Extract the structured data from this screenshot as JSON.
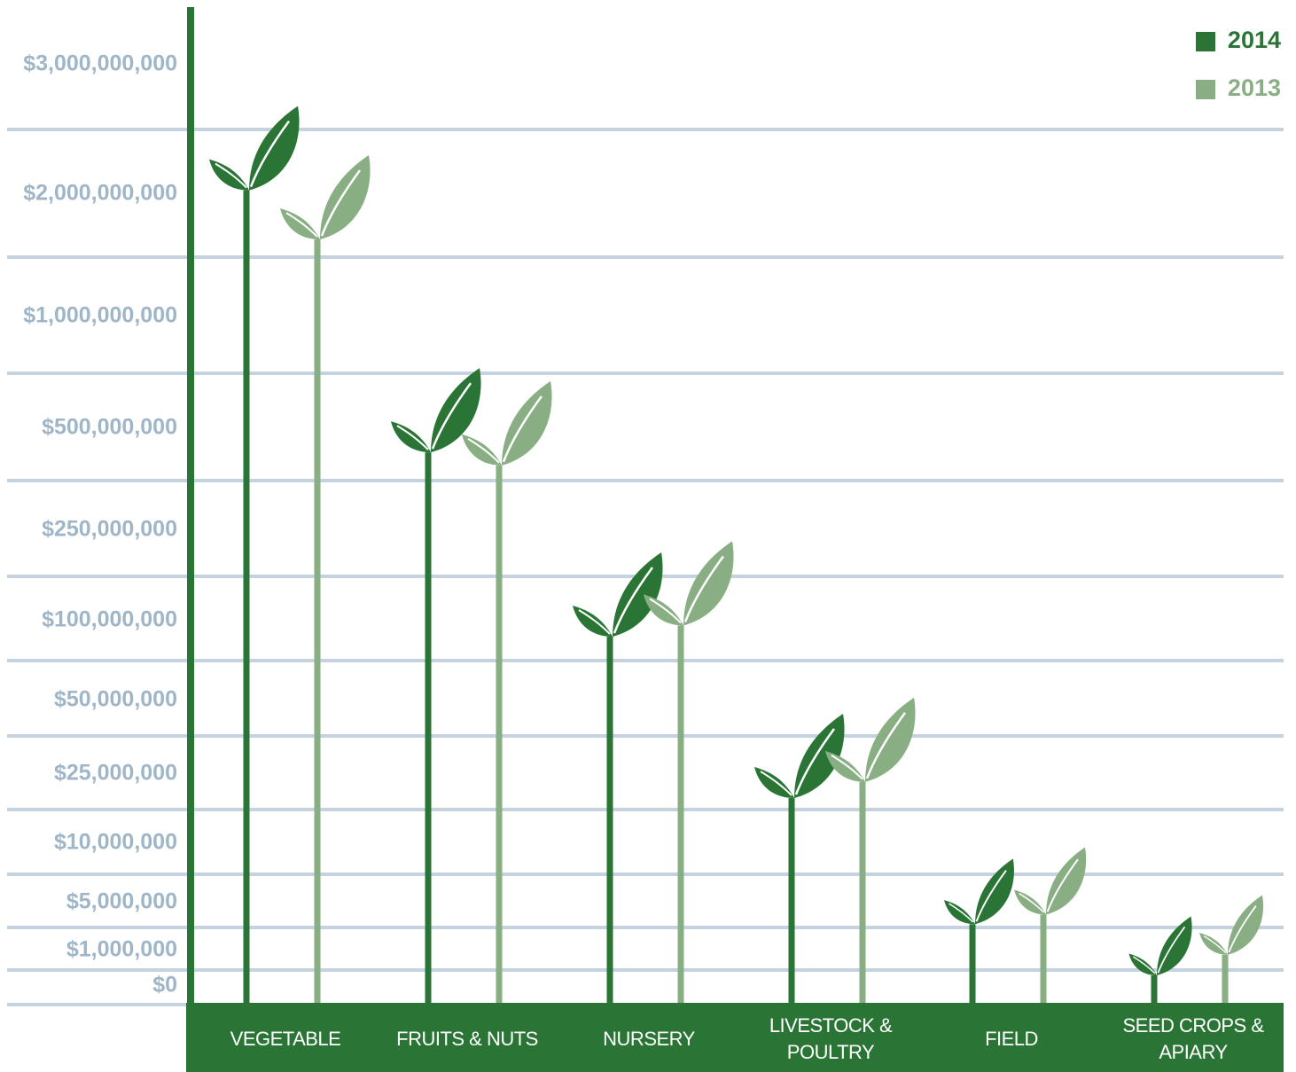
{
  "chart_data": {
    "type": "bar",
    "categories": [
      "VEGETABLE",
      "FRUITS & NUTS",
      "NURSERY",
      "LIVESTOCK & POULTRY",
      "FIELD",
      "SEED CROPS & APIARY"
    ],
    "series": [
      {
        "name": "2014",
        "color": "#2a7535",
        "values": [
          2030000000,
          441000000,
          90000000,
          19800000,
          3200000,
          300000
        ]
      },
      {
        "name": "2013",
        "color": "#8aae84",
        "values": [
          1630000000,
          409000000,
          97000000,
          23300000,
          4000000,
          880000
        ]
      }
    ],
    "ylim": [
      0,
      3000000000
    ],
    "yticks": [
      {
        "value": 0,
        "label": "$0"
      },
      {
        "value": 1000000,
        "label": "$1,000,000"
      },
      {
        "value": 5000000,
        "label": "$5,000,000"
      },
      {
        "value": 10000000,
        "label": "$10,000,000"
      },
      {
        "value": 25000000,
        "label": "$25,000,000"
      },
      {
        "value": 50000000,
        "label": "$50,000,000"
      },
      {
        "value": 100000000,
        "label": "$100,000,000"
      },
      {
        "value": 250000000,
        "label": "$250,000,000"
      },
      {
        "value": 500000000,
        "label": "$500,000,000"
      },
      {
        "value": 1000000000,
        "label": "$1,000,000,000"
      },
      {
        "value": 2000000000,
        "label": "$2,000,000,000"
      },
      {
        "value": 3000000000,
        "label": "$3,000,000,000"
      }
    ],
    "legend": "top-right"
  }
}
